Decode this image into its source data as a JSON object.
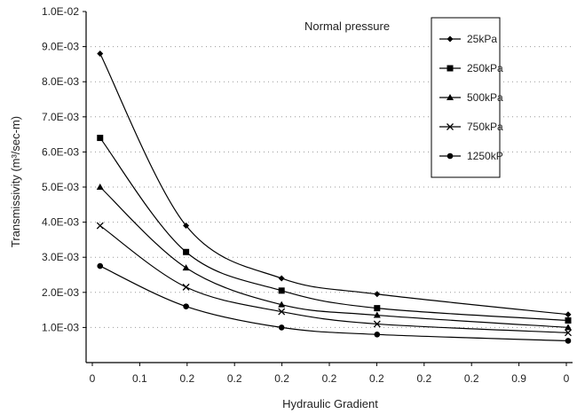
{
  "chart_data": {
    "type": "line",
    "title": "",
    "annotation": "Normal pressure",
    "xlabel": "Hydraulic Gradient",
    "ylabel": "Transmissivity (m³/sec-m)",
    "x": [
      0.01,
      0.1,
      0.2,
      0.3,
      0.5
    ],
    "x_tick_labels": [
      "0",
      "0.1",
      "0.2",
      "0.2",
      "0.2",
      "0.2",
      "0.2",
      "0.2",
      "0.2",
      "0.9",
      "0"
    ],
    "x_range": [
      0,
      0.5
    ],
    "y_tick_labels": [
      "1.0E-03",
      "2.0E-03",
      "3.0E-03",
      "4.0E-03",
      "5.0E-03",
      "6.0E-03",
      "7.0E-03",
      "8.0E-03",
      "9.0E-03",
      "1.0E-02"
    ],
    "y_ticks": [
      0.001,
      0.002,
      0.003,
      0.004,
      0.005,
      0.006,
      0.007,
      0.008,
      0.009,
      0.01
    ],
    "ylim": [
      0,
      0.01
    ],
    "grid": "dotted",
    "legend_position": "top-right",
    "series": [
      {
        "name": "25kPa",
        "marker": "diamond",
        "values": [
          0.0088,
          0.0039,
          0.0024,
          0.00195,
          0.00137
        ]
      },
      {
        "name": "250kPa",
        "marker": "square",
        "values": [
          0.0064,
          0.00315,
          0.00205,
          0.00155,
          0.0012
        ]
      },
      {
        "name": "500kPa",
        "marker": "triangle",
        "values": [
          0.005,
          0.0027,
          0.00165,
          0.00135,
          0.001
        ]
      },
      {
        "name": "750kPa",
        "marker": "x",
        "values": [
          0.0039,
          0.00215,
          0.00145,
          0.0011,
          0.00085
        ]
      },
      {
        "name": "1250kP",
        "marker": "circle",
        "values": [
          0.00275,
          0.0016,
          0.001,
          0.0008,
          0.00062
        ]
      }
    ]
  }
}
